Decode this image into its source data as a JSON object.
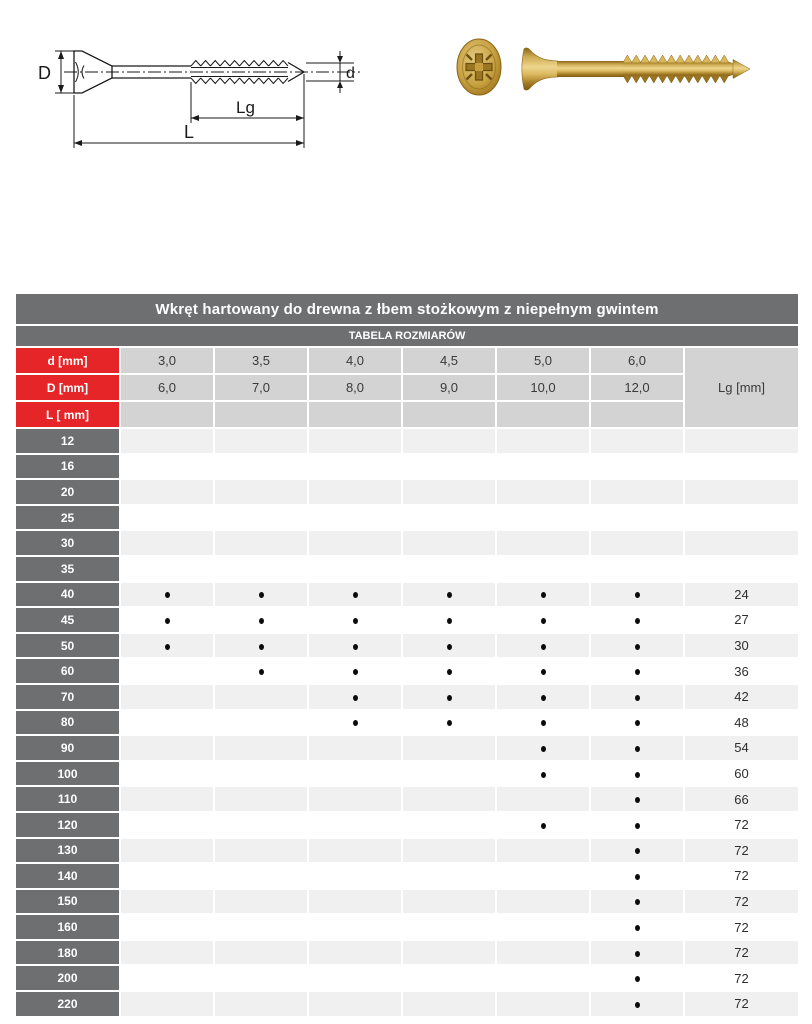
{
  "diagram": {
    "label_D": "D",
    "label_d": "d",
    "label_Lg": "Lg",
    "label_L": "L"
  },
  "table": {
    "title": "Wkręt hartowany do drewna z łbem stożkowym z niepełnym gwintem",
    "subtitle": "TABELA ROZMIARÓW",
    "columns": {
      "d_label": "d [mm]",
      "D_label": "D [mm]",
      "L_label": "L [ mm]",
      "lg_label": "Lg [mm]"
    },
    "d_values": [
      "3,0",
      "3,5",
      "4,0",
      "4,5",
      "5,0",
      "6,0"
    ],
    "D_values": [
      "6,0",
      "7,0",
      "8,0",
      "9,0",
      "10,0",
      "12,0"
    ],
    "rows": [
      {
        "L": "12",
        "dots": [
          0,
          0,
          0,
          0,
          0,
          0
        ],
        "lg": ""
      },
      {
        "L": "16",
        "dots": [
          0,
          0,
          0,
          0,
          0,
          0
        ],
        "lg": ""
      },
      {
        "L": "20",
        "dots": [
          0,
          0,
          0,
          0,
          0,
          0
        ],
        "lg": ""
      },
      {
        "L": "25",
        "dots": [
          0,
          0,
          0,
          0,
          0,
          0
        ],
        "lg": ""
      },
      {
        "L": "30",
        "dots": [
          0,
          0,
          0,
          0,
          0,
          0
        ],
        "lg": ""
      },
      {
        "L": "35",
        "dots": [
          0,
          0,
          0,
          0,
          0,
          0
        ],
        "lg": ""
      },
      {
        "L": "40",
        "dots": [
          1,
          1,
          1,
          1,
          1,
          1
        ],
        "lg": "24"
      },
      {
        "L": "45",
        "dots": [
          1,
          1,
          1,
          1,
          1,
          1
        ],
        "lg": "27"
      },
      {
        "L": "50",
        "dots": [
          1,
          1,
          1,
          1,
          1,
          1
        ],
        "lg": "30"
      },
      {
        "L": "60",
        "dots": [
          0,
          1,
          1,
          1,
          1,
          1
        ],
        "lg": "36"
      },
      {
        "L": "70",
        "dots": [
          0,
          0,
          1,
          1,
          1,
          1
        ],
        "lg": "42"
      },
      {
        "L": "80",
        "dots": [
          0,
          0,
          1,
          1,
          1,
          1
        ],
        "lg": "48"
      },
      {
        "L": "90",
        "dots": [
          0,
          0,
          0,
          0,
          1,
          1
        ],
        "lg": "54"
      },
      {
        "L": "100",
        "dots": [
          0,
          0,
          0,
          0,
          1,
          1
        ],
        "lg": "60"
      },
      {
        "L": "110",
        "dots": [
          0,
          0,
          0,
          0,
          0,
          1
        ],
        "lg": "66"
      },
      {
        "L": "120",
        "dots": [
          0,
          0,
          0,
          0,
          1,
          1
        ],
        "lg": "72"
      },
      {
        "L": "130",
        "dots": [
          0,
          0,
          0,
          0,
          0,
          1
        ],
        "lg": "72"
      },
      {
        "L": "140",
        "dots": [
          0,
          0,
          0,
          0,
          0,
          1
        ],
        "lg": "72"
      },
      {
        "L": "150",
        "dots": [
          0,
          0,
          0,
          0,
          0,
          1
        ],
        "lg": "72"
      },
      {
        "L": "160",
        "dots": [
          0,
          0,
          0,
          0,
          0,
          1
        ],
        "lg": "72"
      },
      {
        "L": "180",
        "dots": [
          0,
          0,
          0,
          0,
          0,
          1
        ],
        "lg": "72"
      },
      {
        "L": "200",
        "dots": [
          0,
          0,
          0,
          0,
          0,
          1
        ],
        "lg": "72"
      },
      {
        "L": "220",
        "dots": [
          0,
          0,
          0,
          0,
          0,
          1
        ],
        "lg": "72"
      }
    ],
    "colors": {
      "header_gray": "#6e6f71",
      "accent_red": "#e52528",
      "header_cell_gray": "#d3d3d4",
      "stripe_gray": "#f0f0f0",
      "dot_black": "#0b0b0b",
      "screw_gold": "#c9a445"
    }
  }
}
